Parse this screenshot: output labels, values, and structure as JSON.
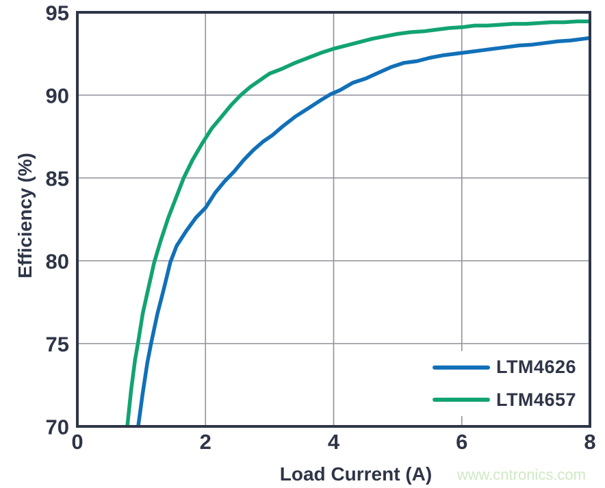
{
  "watermark": "www.cntronics.com",
  "colors": {
    "axis_frame": "#2e3547",
    "grid": "#8f9199",
    "text": "#2e3547",
    "blue_series": "#1170b8",
    "green_series": "#12a372",
    "watermark_green": "#cfe9c4",
    "background": "#ffffff"
  },
  "chart_data": {
    "type": "line",
    "title": "",
    "xlabel": "Load Current (A)",
    "ylabel": "Efficiency (%)",
    "xlim": [
      0,
      8
    ],
    "ylim": [
      70,
      95
    ],
    "x_ticks": [
      0,
      2,
      4,
      6,
      8
    ],
    "y_ticks": [
      70,
      75,
      80,
      85,
      90,
      95
    ],
    "grid": true,
    "legend_position": "lower right",
    "series": [
      {
        "name": "LTM4626",
        "color": "#1170b8",
        "points": [
          [
            0.95,
            70
          ],
          [
            1.02,
            72
          ],
          [
            1.09,
            73.8
          ],
          [
            1.15,
            75
          ],
          [
            1.25,
            76.8
          ],
          [
            1.35,
            78.3
          ],
          [
            1.45,
            79.9
          ],
          [
            1.55,
            80.9
          ],
          [
            1.7,
            81.8
          ],
          [
            1.85,
            82.6
          ],
          [
            2.0,
            83.2
          ],
          [
            2.15,
            84.1
          ],
          [
            2.3,
            84.8
          ],
          [
            2.45,
            85.4
          ],
          [
            2.6,
            86.1
          ],
          [
            2.75,
            86.7
          ],
          [
            2.9,
            87.2
          ],
          [
            3.05,
            87.6
          ],
          [
            3.2,
            88.1
          ],
          [
            3.4,
            88.7
          ],
          [
            3.6,
            89.2
          ],
          [
            3.8,
            89.7
          ],
          [
            3.95,
            90.05
          ],
          [
            4.1,
            90.3
          ],
          [
            4.3,
            90.75
          ],
          [
            4.5,
            91.0
          ],
          [
            4.7,
            91.35
          ],
          [
            4.9,
            91.7
          ],
          [
            5.1,
            91.95
          ],
          [
            5.3,
            92.05
          ],
          [
            5.5,
            92.25
          ],
          [
            5.7,
            92.4
          ],
          [
            5.9,
            92.5
          ],
          [
            6.1,
            92.6
          ],
          [
            6.3,
            92.7
          ],
          [
            6.5,
            92.8
          ],
          [
            6.7,
            92.9
          ],
          [
            6.9,
            93.0
          ],
          [
            7.1,
            93.05
          ],
          [
            7.3,
            93.15
          ],
          [
            7.5,
            93.25
          ],
          [
            7.7,
            93.3
          ],
          [
            7.9,
            93.4
          ],
          [
            8.0,
            93.45
          ]
        ]
      },
      {
        "name": "LTM4657",
        "color": "#12a372",
        "points": [
          [
            0.78,
            70
          ],
          [
            0.84,
            72.2
          ],
          [
            0.9,
            74
          ],
          [
            0.95,
            75.1
          ],
          [
            1.02,
            76.8
          ],
          [
            1.1,
            78.2
          ],
          [
            1.2,
            79.9
          ],
          [
            1.3,
            81.2
          ],
          [
            1.42,
            82.6
          ],
          [
            1.55,
            83.9
          ],
          [
            1.66,
            85.0
          ],
          [
            1.8,
            86.1
          ],
          [
            1.95,
            87.1
          ],
          [
            2.1,
            88.0
          ],
          [
            2.25,
            88.7
          ],
          [
            2.4,
            89.4
          ],
          [
            2.55,
            90.0
          ],
          [
            2.7,
            90.5
          ],
          [
            2.85,
            90.9
          ],
          [
            3.0,
            91.3
          ],
          [
            3.2,
            91.6
          ],
          [
            3.4,
            91.95
          ],
          [
            3.6,
            92.25
          ],
          [
            3.8,
            92.55
          ],
          [
            4.0,
            92.8
          ],
          [
            4.2,
            93.0
          ],
          [
            4.4,
            93.2
          ],
          [
            4.6,
            93.4
          ],
          [
            4.8,
            93.55
          ],
          [
            5.0,
            93.7
          ],
          [
            5.2,
            93.8
          ],
          [
            5.4,
            93.85
          ],
          [
            5.6,
            93.95
          ],
          [
            5.8,
            94.05
          ],
          [
            6.0,
            94.1
          ],
          [
            6.2,
            94.2
          ],
          [
            6.4,
            94.2
          ],
          [
            6.6,
            94.25
          ],
          [
            6.8,
            94.3
          ],
          [
            7.0,
            94.3
          ],
          [
            7.2,
            94.35
          ],
          [
            7.4,
            94.4
          ],
          [
            7.6,
            94.4
          ],
          [
            7.8,
            94.45
          ],
          [
            8.0,
            94.45
          ]
        ]
      }
    ]
  }
}
